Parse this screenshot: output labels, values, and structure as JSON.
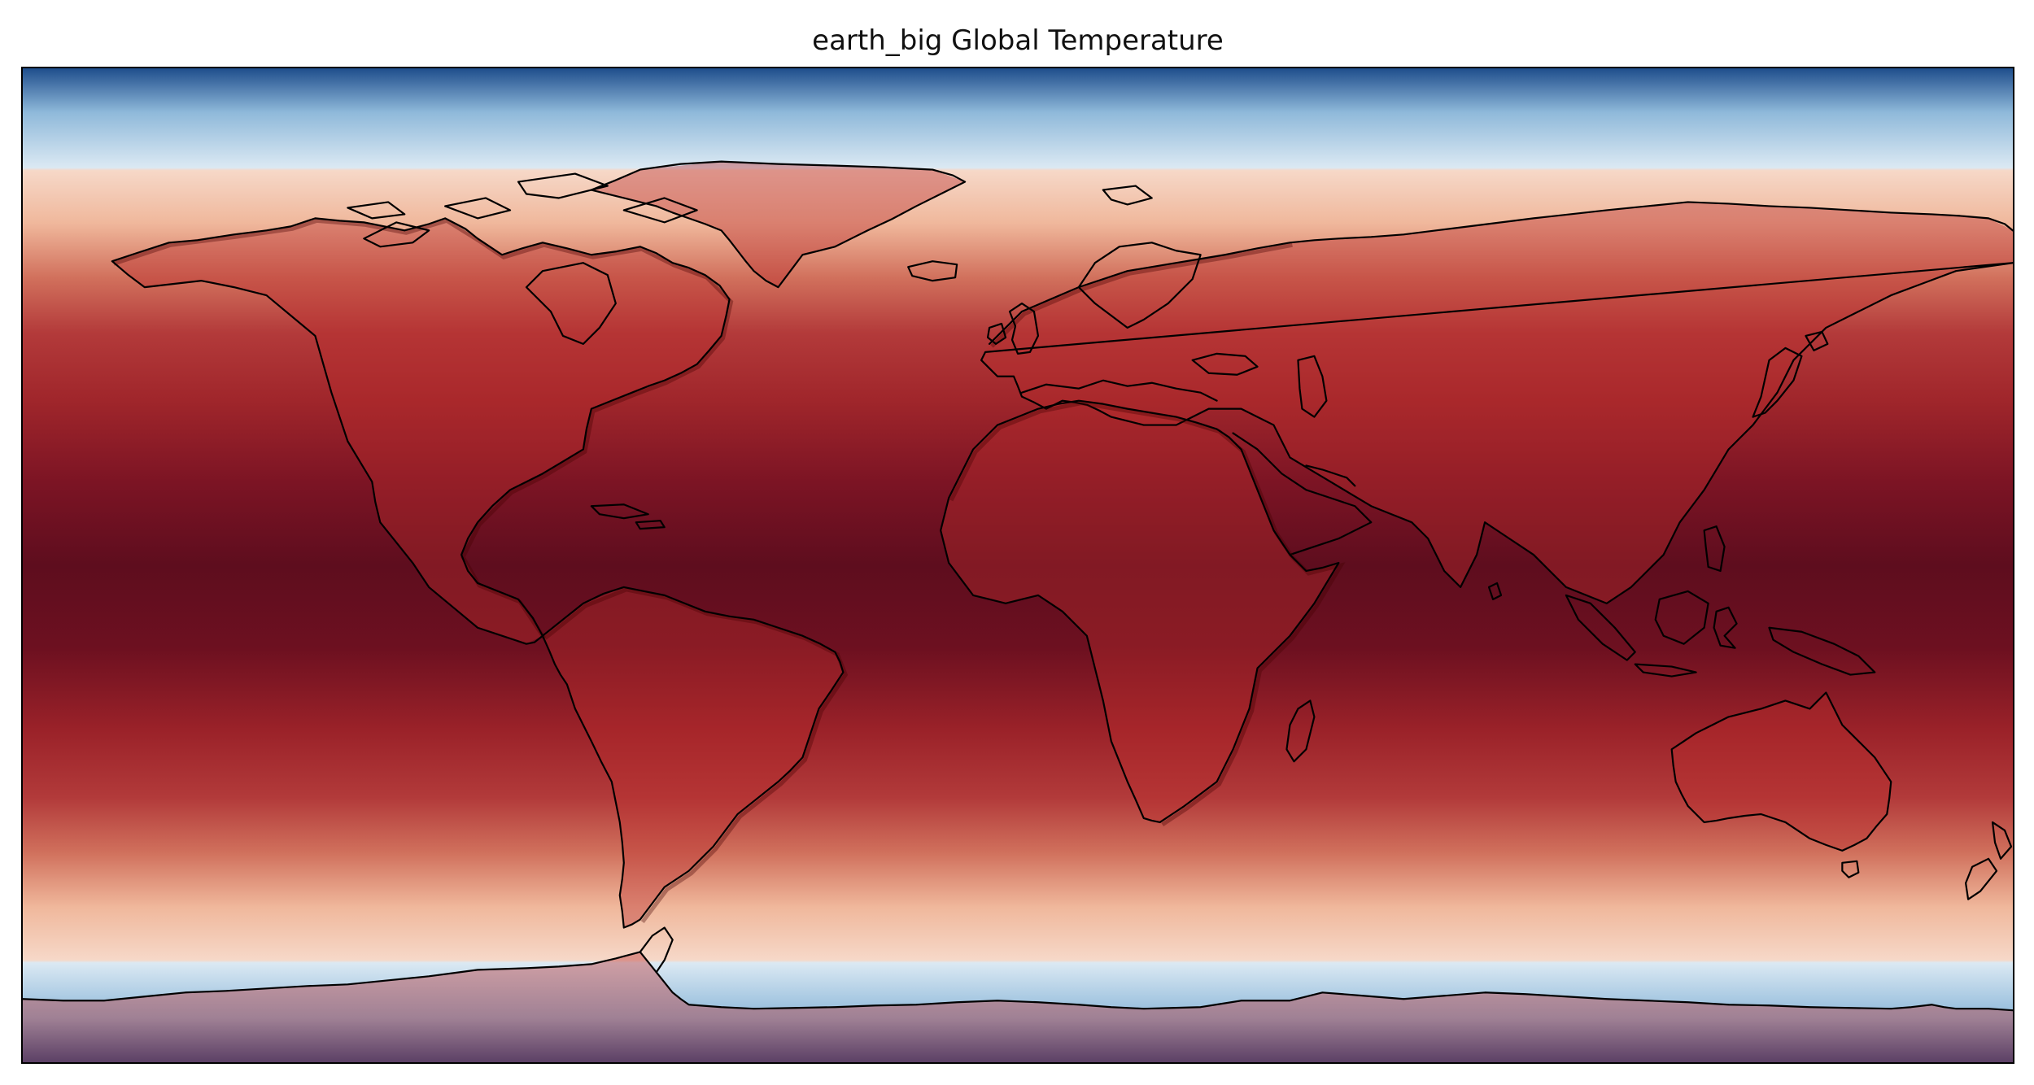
{
  "figure": {
    "title": "earth_big Global Temperature"
  },
  "map": {
    "projection": "PlateCarree",
    "lon_range": [
      -180,
      180
    ],
    "lat_range": [
      -90,
      90
    ],
    "colormap": "RdBu_r",
    "colorbar": false,
    "coastlines": true,
    "gridlines": false,
    "field_profile": [
      {
        "lat": 90,
        "color": "#1f4e8c"
      },
      {
        "lat": 82,
        "color": "#8fb9da"
      },
      {
        "lat": 72,
        "color": "#dbe9f3"
      },
      {
        "lat": 71.5,
        "color": "#f6d8c8"
      },
      {
        "lat": 62,
        "color": "#f0b89c"
      },
      {
        "lat": 52,
        "color": "#d1705c"
      },
      {
        "lat": 42,
        "color": "#b33a3a"
      },
      {
        "lat": 30,
        "color": "#a0262b"
      },
      {
        "lat": 15,
        "color": "#7c1424"
      },
      {
        "lat": 0,
        "color": "#5e0d1e"
      },
      {
        "lat": -15,
        "color": "#6d1020"
      },
      {
        "lat": -30,
        "color": "#9b2229"
      },
      {
        "lat": -42,
        "color": "#b23a3a"
      },
      {
        "lat": -52,
        "color": "#d0705c"
      },
      {
        "lat": -62,
        "color": "#f0b89c"
      },
      {
        "lat": -71.5,
        "color": "#f6d8c8"
      },
      {
        "lat": -72,
        "color": "#dbe9f3"
      },
      {
        "lat": -82,
        "color": "#8fb9da"
      },
      {
        "lat": -90,
        "color": "#1f4e8c"
      }
    ]
  }
}
